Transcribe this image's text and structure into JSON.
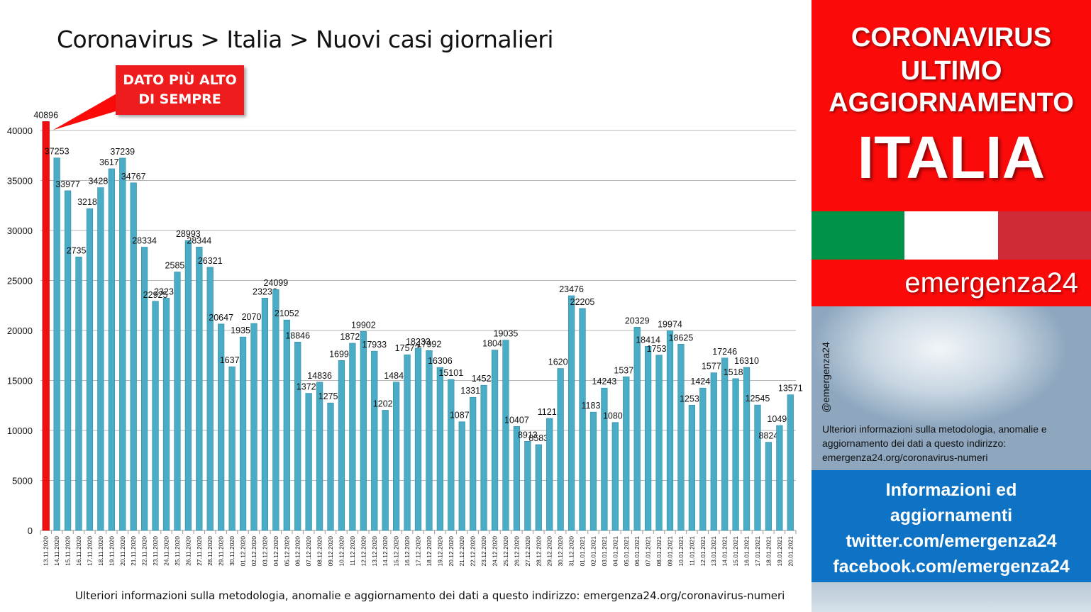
{
  "title": "Coronavirus > Italia > Nuovi casi giornalieri",
  "callout": {
    "line1": "DATO PIÙ ALTO",
    "line2": "DI SEMPRE"
  },
  "footer_note": "Ulteriori informazioni sulla metodologia, anomalie e aggiornamento dei dati a questo indirizzo: emergenza24.org/coronavirus-numeri",
  "panel": {
    "line1": "CORONAVIRUS",
    "line2": "ULTIMO",
    "line3": "AGGIORNAMENTO",
    "country": "ITALIA",
    "brand": "emergenza24",
    "handle": "@emergenza24",
    "info": "Ulteriori informazioni sulla metodologia, anomalie e aggiornamento dei dati a questo indirizzo: emergenza24.org/coronavirus-numeri",
    "social_lines": [
      "Informazioni ed",
      "aggiornamenti",
      "twitter.com/emergenza24",
      "facebook.com/emergenza24"
    ],
    "flag_colors": [
      "#009246",
      "#ffffff",
      "#ce2b37"
    ]
  },
  "colors": {
    "bar": "#4bacc6",
    "highlight_bar": "#ee1111",
    "accent_red": "#fb0a0a",
    "blue": "#0e73c4"
  },
  "chart_data": {
    "type": "bar",
    "title": "Coronavirus > Italia > Nuovi casi giornalieri",
    "xlabel": "",
    "ylabel": "",
    "ylim": [
      0,
      40000
    ],
    "yticks": [
      0,
      5000,
      10000,
      15000,
      20000,
      25000,
      30000,
      35000,
      40000
    ],
    "grid": true,
    "highlight_index": 0,
    "categories": [
      "13.11.2020",
      "14.11.2020",
      "15.11.2020",
      "16.11.2020",
      "17.11.2020",
      "18.11.2020",
      "19.11.2020",
      "20.11.2020",
      "21.11.2020",
      "22.11.2020",
      "23.11.2020",
      "24.11.2020",
      "25.11.2020",
      "26.11.2020",
      "27.11.2020",
      "28.11.2020",
      "29.11.2020",
      "30.11.2020",
      "01.12.2020",
      "02.12.2020",
      "03.12.2020",
      "04.12.2020",
      "05.12.2020",
      "06.12.2020",
      "07.12.2020",
      "08.12.2020",
      "09.12.2020",
      "10.12.2020",
      "11.12.2020",
      "12.12.2020",
      "13.12.2020",
      "14.12.2020",
      "15.12.2020",
      "16.12.2020",
      "17.12.2020",
      "18.12.2020",
      "19.12.2020",
      "20.12.2020",
      "21.12.2020",
      "22.12.2020",
      "23.12.2020",
      "24.12.2020",
      "25.12.2020",
      "26.12.2020",
      "27.12.2020",
      "28.12.2020",
      "29.12.2020",
      "30.12.2020",
      "31.12.2020",
      "01.01.2021",
      "02.01.2021",
      "03.01.2021",
      "04.01.2021",
      "05.01.2021",
      "06.01.2021",
      "07.01.2021",
      "08.01.2021",
      "09.01.2021",
      "10.01.2021",
      "11.01.2021",
      "12.01.2021",
      "13.01.2021",
      "14.01.2021",
      "15.01.2021",
      "16.01.2021",
      "17.01.2021",
      "18.01.2021",
      "19.01.2021",
      "20.01.2021"
    ],
    "values": [
      40896,
      37253,
      33977,
      27354,
      32188,
      34283,
      36173,
      37239,
      34767,
      28334,
      22925,
      23231,
      25851,
      28993,
      28344,
      26321,
      20647,
      16374,
      19350,
      20703,
      23236,
      24099,
      21052,
      18846,
      13720,
      14836,
      12755,
      16998,
      18726,
      19902,
      17933,
      12025,
      14840,
      17572,
      18233,
      17992,
      16306,
      15101,
      10870,
      13318,
      14522,
      18040,
      19035,
      10407,
      8913,
      8583,
      11212,
      16202,
      23476,
      22205,
      11831,
      14243,
      10800,
      15370,
      20329,
      18414,
      17533,
      19974,
      18625,
      12532,
      14241,
      15771,
      17246,
      15187,
      16310,
      12545,
      8824,
      10497,
      13571
    ]
  }
}
